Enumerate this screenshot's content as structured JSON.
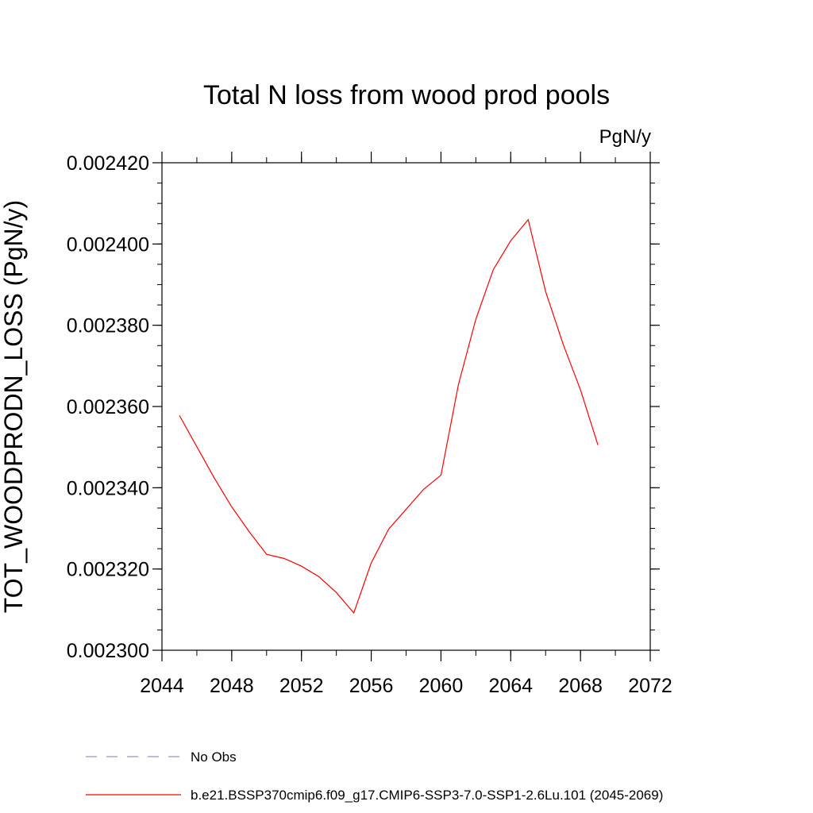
{
  "chart_data": {
    "type": "line",
    "title": "Total N loss from wood prod pools",
    "units": "PgN/y",
    "ylabel": "TOT_WOODPRODN_LOSS  (PgN/y)",
    "xlabel": "",
    "xlim": [
      2044,
      2072
    ],
    "ylim": [
      0.0023,
      0.00242
    ],
    "x_ticks": [
      "2044",
      "2048",
      "2052",
      "2056",
      "2060",
      "2064",
      "2068",
      "2072"
    ],
    "y_ticks": [
      "0.002300",
      "0.002320",
      "0.002340",
      "0.002360",
      "0.002380",
      "0.002400",
      "0.002420"
    ],
    "grid": false,
    "series": [
      {
        "name": "b.e21.BSSP370cmip6.f09_g17.CMIP6-SSP3-7.0-SSP1-2.6Lu.101 (2045-2069)",
        "color": "#ff0000",
        "style": "solid",
        "x": [
          2045,
          2046,
          2047,
          2048,
          2049,
          2050,
          2051,
          2052,
          2053,
          2054,
          2055,
          2056,
          2057,
          2058,
          2059,
          2060,
          2061,
          2062,
          2063,
          2064,
          2065,
          2066,
          2067,
          2068,
          2069
        ],
        "y": [
          0.0023578,
          0.0023501,
          0.0023424,
          0.0023353,
          0.0023292,
          0.0023236,
          0.0023226,
          0.0023207,
          0.0023181,
          0.0023142,
          0.0023092,
          0.0023215,
          0.0023298,
          0.0023347,
          0.0023396,
          0.0023431,
          0.0023654,
          0.0023815,
          0.0023937,
          0.0024008,
          0.002406,
          0.0023883,
          0.0023754,
          0.0023641,
          0.0023505
        ]
      }
    ],
    "legend": [
      {
        "label": "No Obs",
        "color": "#9a8fd0",
        "style": "dashed"
      },
      {
        "label": "b.e21.BSSP370cmip6.f09_g17.CMIP6-SSP3-7.0-SSP1-2.6Lu.101 (2045-2069)",
        "color": "#ff0000",
        "style": "solid"
      }
    ],
    "legend_position": "bottom"
  }
}
